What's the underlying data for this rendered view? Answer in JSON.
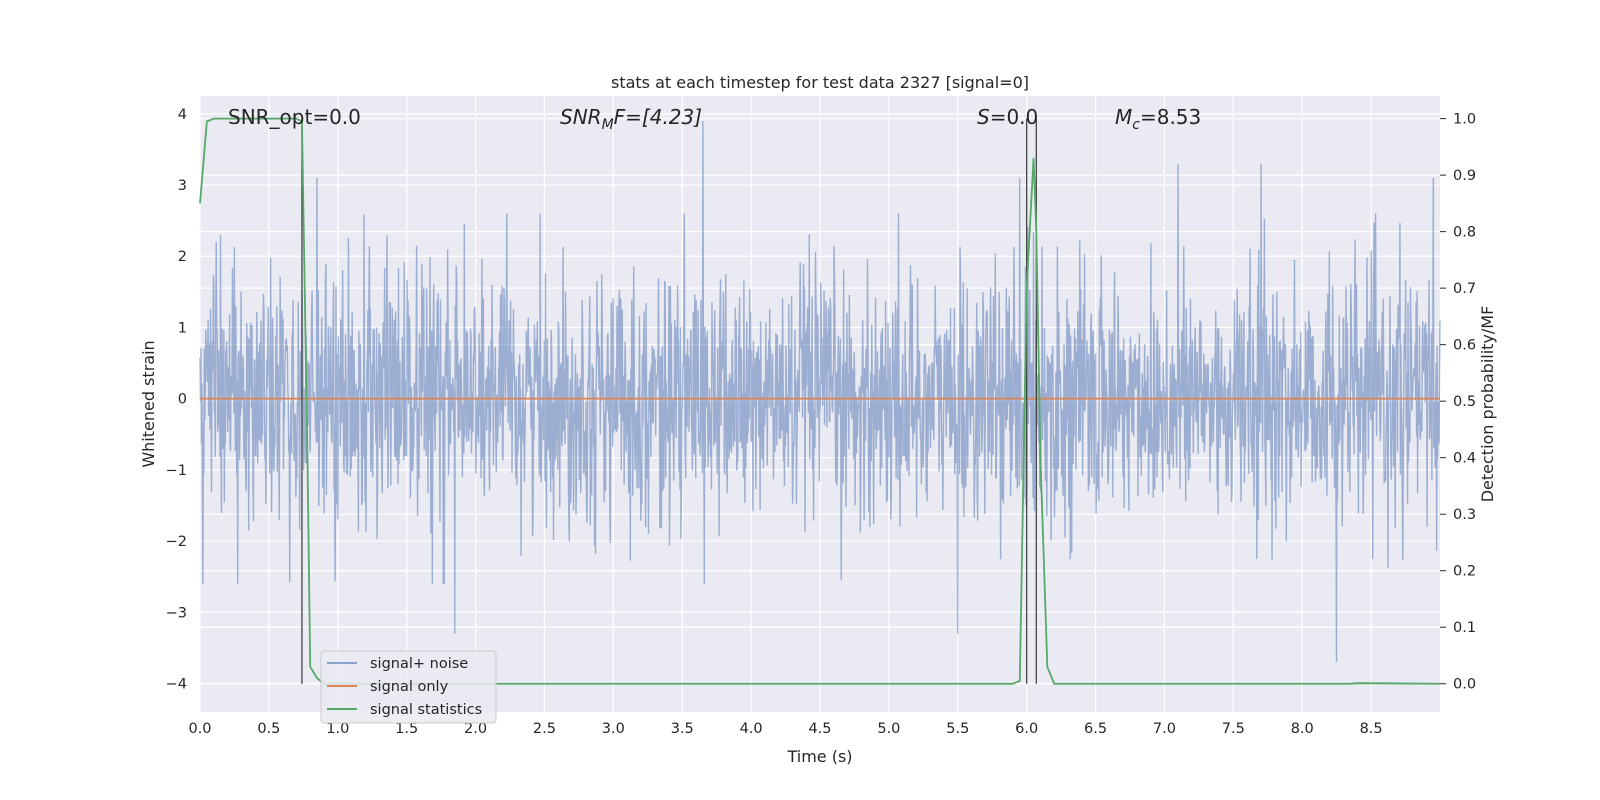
{
  "chart_data": {
    "type": "line",
    "title": "stats at each timestep for test data 2327 [signal=0]",
    "xlabel": "Time (s)",
    "ylabel_left": "Whitened strain",
    "ylabel_right": "Detection probability/MF",
    "xlim": [
      0.0,
      9.0
    ],
    "ylim_left": [
      -4.4,
      4.25
    ],
    "ylim_right": [
      -0.05,
      1.04
    ],
    "xticks": [
      "0.0",
      "0.5",
      "1.0",
      "1.5",
      "2.0",
      "2.5",
      "3.0",
      "3.5",
      "4.0",
      "4.5",
      "5.0",
      "5.5",
      "6.0",
      "6.5",
      "7.0",
      "7.5",
      "8.0",
      "8.5"
    ],
    "yticks_left": [
      "4",
      "3",
      "2",
      "1",
      "0",
      "−1",
      "−2",
      "−3",
      "−4"
    ],
    "yticks_right": [
      "1.0",
      "0.9",
      "0.8",
      "0.7",
      "0.6",
      "0.5",
      "0.4",
      "0.3",
      "0.2",
      "0.1",
      "0.0"
    ],
    "grid": true,
    "legend_placement": "lower-left",
    "annotations": {
      "snr_opt": "SNR_opt=0.0",
      "snr_mf_base": "SNR",
      "snr_mf_sub": "M",
      "snr_mf_rest": "F=[4.23]",
      "s_label": "S",
      "s_value": "=0.0",
      "mc_base": "M",
      "mc_sub": "c",
      "mc_value": "=8.53"
    },
    "series": [
      {
        "name": "signal+ noise",
        "axis": "left",
        "color": "#4c72b0",
        "description_envelope": "noise roughly between -2 and 2 with spikes up to ~3.9 and down to ~-3.7",
        "peaks": [
          [
            0.15,
            2.3
          ],
          [
            0.85,
            3.1
          ],
          [
            1.85,
            -3.3
          ],
          [
            3.65,
            3.9
          ],
          [
            5.5,
            -3.3
          ],
          [
            5.95,
            3.1
          ],
          [
            7.1,
            3.3
          ],
          [
            7.7,
            3.3
          ],
          [
            8.25,
            -3.7
          ],
          [
            8.95,
            3.1
          ]
        ]
      },
      {
        "name": "signal only",
        "axis": "left",
        "color": "#dd8452",
        "x": [
          0.0,
          9.0
        ],
        "y": [
          0.0,
          0.0
        ]
      },
      {
        "name": "signal statistics",
        "axis": "right",
        "color": "#55a868",
        "x": [
          0.0,
          0.05,
          0.1,
          0.2,
          0.3,
          0.5,
          0.7,
          0.74,
          0.78,
          0.8,
          0.85,
          0.9,
          1.0,
          2.0,
          3.0,
          4.0,
          5.0,
          5.5,
          5.9,
          5.95,
          6.0,
          6.05,
          6.07,
          6.1,
          6.15,
          6.2,
          6.3,
          7.0,
          8.0,
          8.35,
          8.4,
          9.0
        ],
        "y": [
          0.85,
          0.995,
          1.0,
          1.0,
          1.0,
          1.0,
          1.0,
          0.995,
          0.4,
          0.03,
          0.01,
          0.0,
          0.0,
          0.0,
          0.0,
          0.0,
          0.0,
          0.0,
          0.0,
          0.005,
          0.7,
          0.93,
          0.8,
          0.4,
          0.03,
          0.0,
          0.0,
          0.0,
          0.0,
          0.0,
          0.001,
          0.0
        ]
      }
    ],
    "vertical_lines": [
      0.74,
      6.0,
      6.07
    ]
  }
}
